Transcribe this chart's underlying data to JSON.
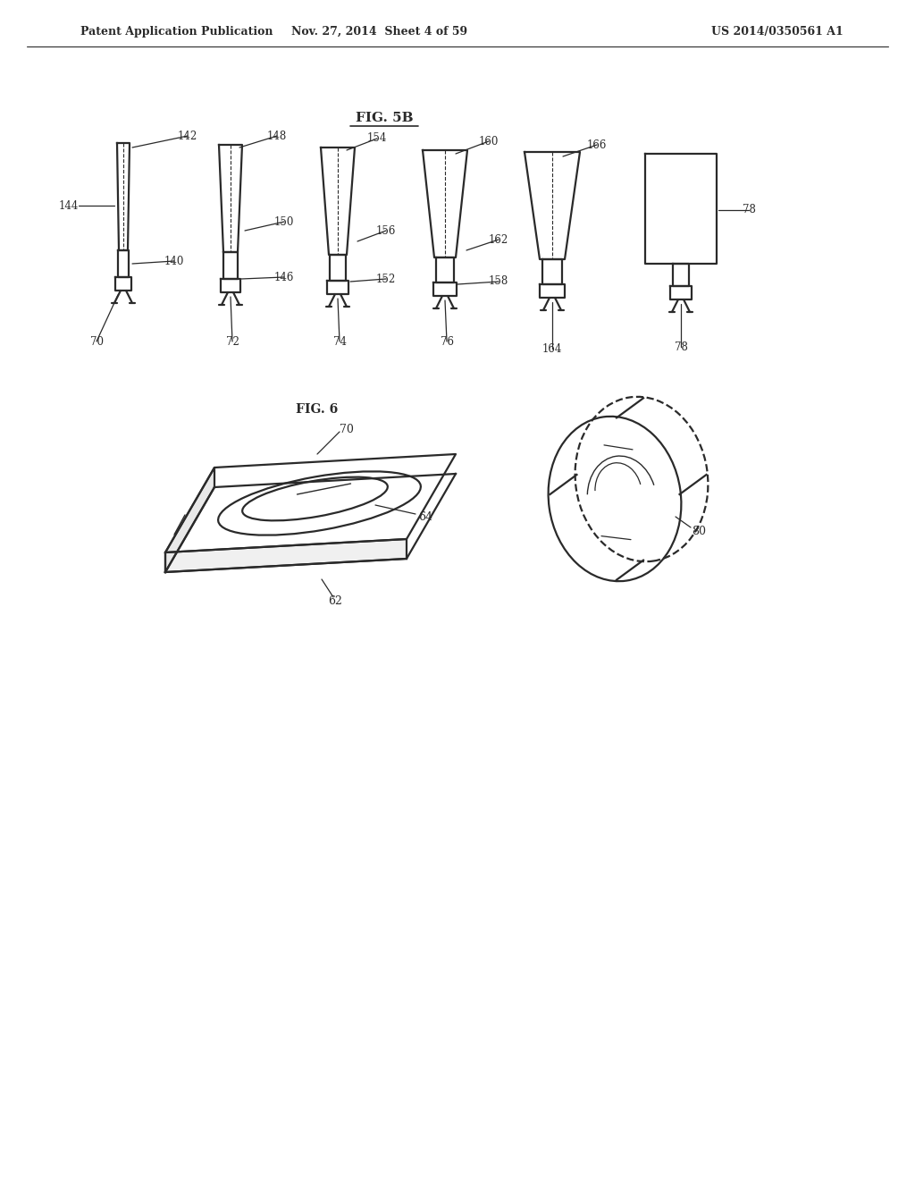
{
  "header_left": "Patent Application Publication",
  "header_mid": "Nov. 27, 2014  Sheet 4 of 59",
  "header_right": "US 2014/0350561 A1",
  "fig5b_title": "FIG. 5B",
  "fig6_title": "FIG. 6",
  "background": "#ffffff",
  "line_color": "#2a2a2a",
  "text_color": "#2a2a2a"
}
